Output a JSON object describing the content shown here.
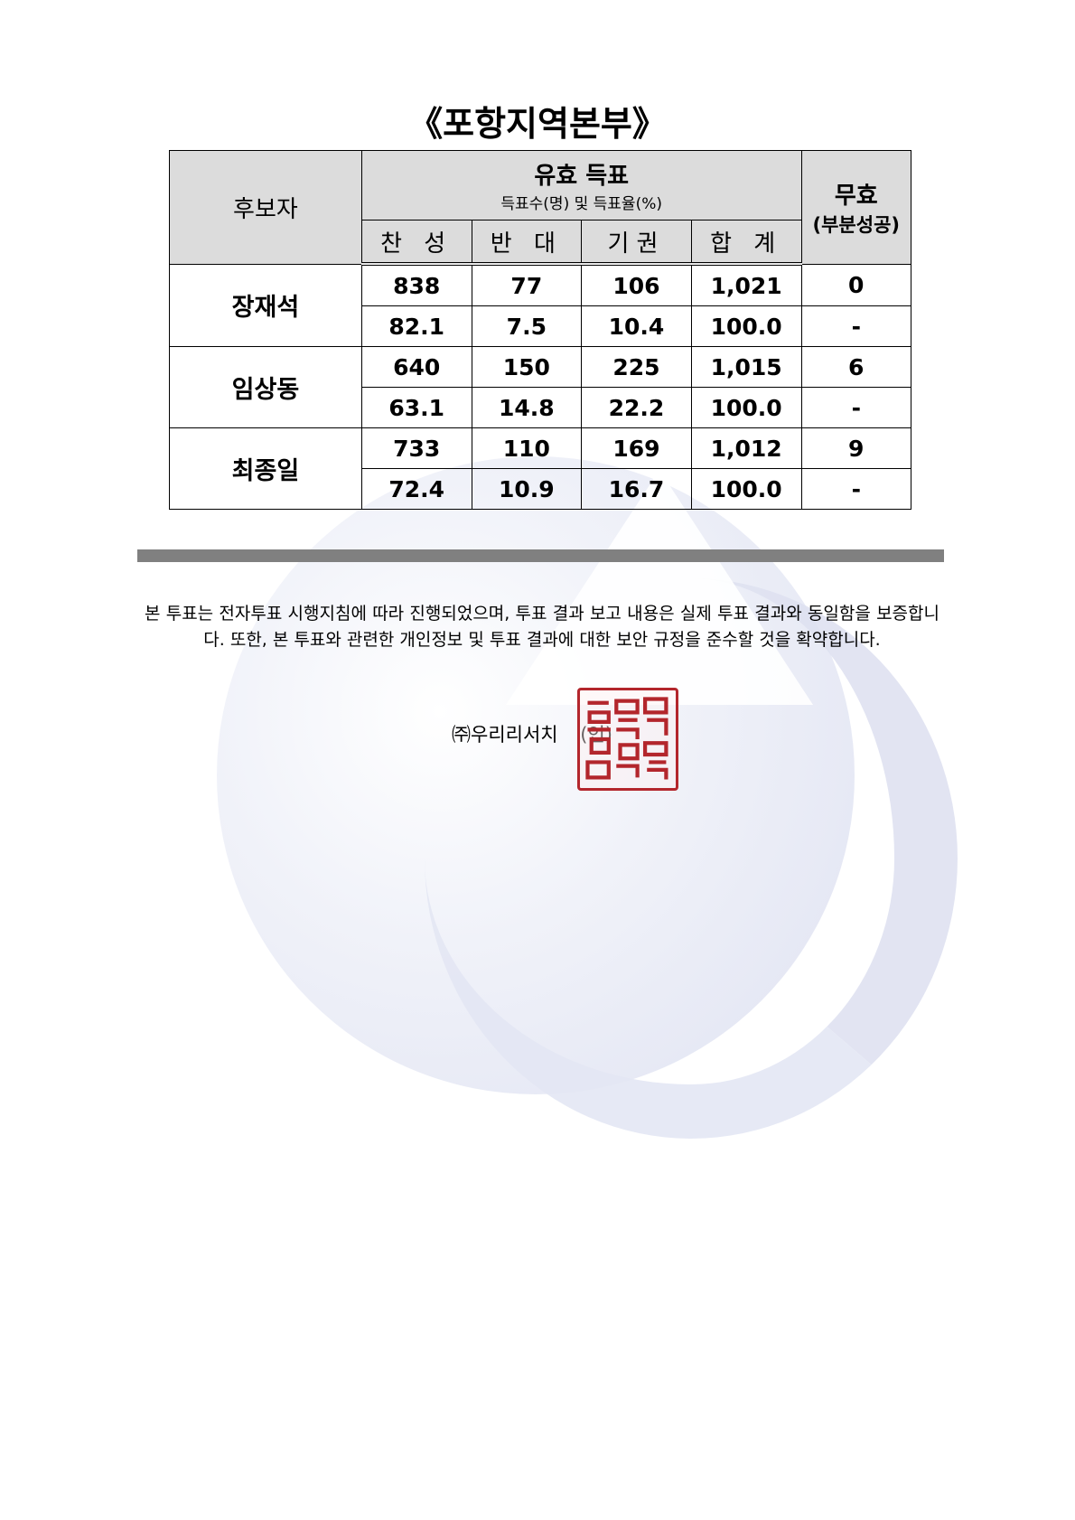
{
  "title": "《포항지역본부》",
  "table": {
    "header": {
      "candidate": "후보자",
      "valid_votes": "유효 득표",
      "valid_votes_sub": "득표수(명) 및 득표율(%)",
      "columns": [
        "찬 성",
        "반 대",
        "기권",
        "합 계"
      ],
      "invalid": "무효",
      "invalid_sub": "(부분성공)"
    },
    "rows": [
      {
        "name": "장재석",
        "counts": [
          "838",
          "77",
          "106",
          "1,021"
        ],
        "invalid": "0",
        "rates": [
          "82.1",
          "7.5",
          "10.4",
          "100.0"
        ],
        "invalid_rate": "-"
      },
      {
        "name": "임상동",
        "counts": [
          "640",
          "150",
          "225",
          "1,015"
        ],
        "invalid": "6",
        "rates": [
          "63.1",
          "14.8",
          "22.2",
          "100.0"
        ],
        "invalid_rate": "-"
      },
      {
        "name": "최종일",
        "counts": [
          "733",
          "110",
          "169",
          "1,012"
        ],
        "invalid": "9",
        "rates": [
          "72.4",
          "10.9",
          "16.7",
          "100.0"
        ],
        "invalid_rate": "-"
      }
    ]
  },
  "statement": "본 투표는 전자투표 시행지침에 따라 진행되었으며, 투표 결과 보고 내용은 실제 투표 결과와 동일함을 보증합니다. 또한, 본 투표와 관련한 개인정보 및 투표 결과에 대한 보안 규정을 준수할 것을 확약합니다.",
  "company": "㈜우리리서치",
  "seal_mark": "(인)",
  "colors": {
    "header_bg": "#dcdcdc",
    "bar": "#808080",
    "seal": "#b3262c"
  }
}
